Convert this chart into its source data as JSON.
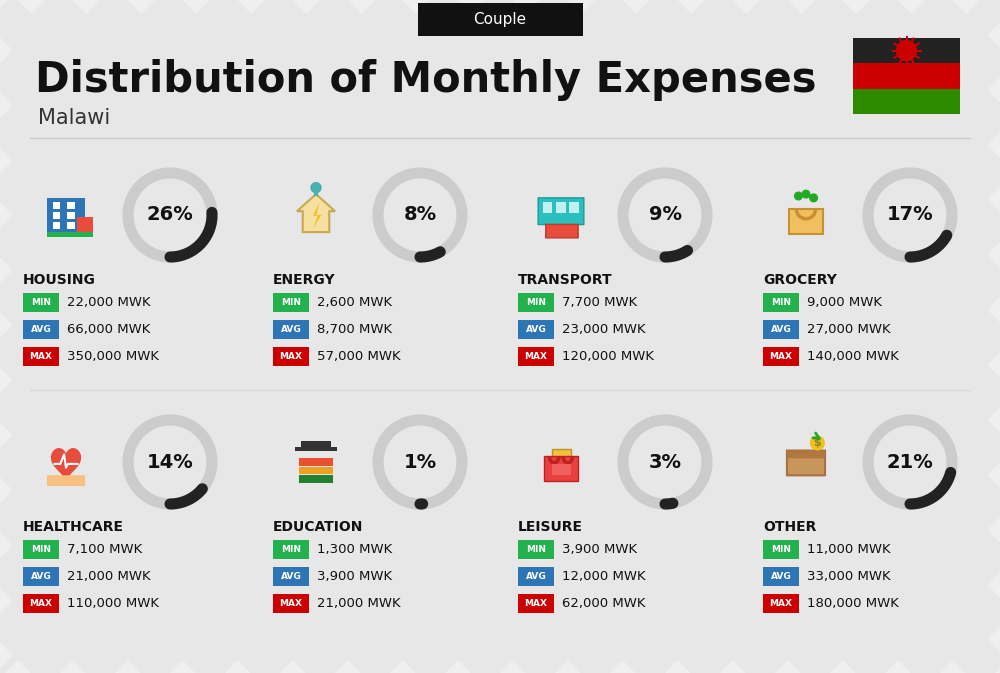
{
  "title": "Distribution of Monthly Expenses",
  "subtitle": "Malawi",
  "tab_label": "Couple",
  "bg_color": "#efefef",
  "categories": [
    {
      "name": "HOUSING",
      "percent": 26,
      "min_val": "22,000 MWK",
      "avg_val": "66,000 MWK",
      "max_val": "350,000 MWK",
      "row": 0,
      "col": 0
    },
    {
      "name": "ENERGY",
      "percent": 8,
      "min_val": "2,600 MWK",
      "avg_val": "8,700 MWK",
      "max_val": "57,000 MWK",
      "row": 0,
      "col": 1
    },
    {
      "name": "TRANSPORT",
      "percent": 9,
      "min_val": "7,700 MWK",
      "avg_val": "23,000 MWK",
      "max_val": "120,000 MWK",
      "row": 0,
      "col": 2
    },
    {
      "name": "GROCERY",
      "percent": 17,
      "min_val": "9,000 MWK",
      "avg_val": "27,000 MWK",
      "max_val": "140,000 MWK",
      "row": 0,
      "col": 3
    },
    {
      "name": "HEALTHCARE",
      "percent": 14,
      "min_val": "7,100 MWK",
      "avg_val": "21,000 MWK",
      "max_val": "110,000 MWK",
      "row": 1,
      "col": 0
    },
    {
      "name": "EDUCATION",
      "percent": 1,
      "min_val": "1,300 MWK",
      "avg_val": "3,900 MWK",
      "max_val": "21,000 MWK",
      "row": 1,
      "col": 1
    },
    {
      "name": "LEISURE",
      "percent": 3,
      "min_val": "3,900 MWK",
      "avg_val": "12,000 MWK",
      "max_val": "62,000 MWK",
      "row": 1,
      "col": 2
    },
    {
      "name": "OTHER",
      "percent": 21,
      "min_val": "11,000 MWK",
      "avg_val": "33,000 MWK",
      "max_val": "180,000 MWK",
      "row": 1,
      "col": 3
    }
  ],
  "min_color": "#22b14c",
  "avg_color": "#2e75b6",
  "max_color": "#cc0000",
  "arc_color": "#222222",
  "arc_bg_color": "#cccccc",
  "flag_colors": [
    "#222222",
    "#cc0000",
    "#2e8b00"
  ],
  "stripe_color": "#e4e4e4",
  "separator_color": "#cccccc",
  "title_color": "#111111",
  "tab_bg": "#111111",
  "tab_text": "#ffffff"
}
